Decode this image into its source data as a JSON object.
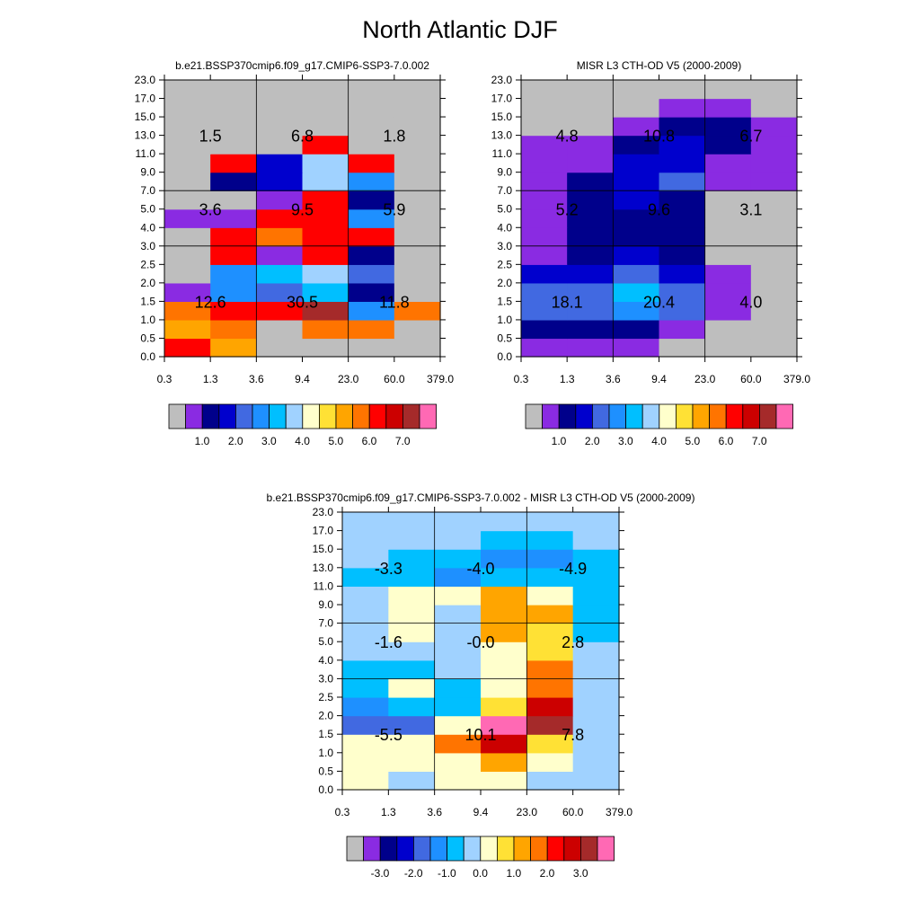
{
  "figure_title": "North Atlantic DJF",
  "chart_data": [
    {
      "type": "heatmap",
      "title": "b.e21.BSSP370cmip6.f09_g17.CMIP6-SSP3-7.0.002",
      "x_ticks": [
        "0.3",
        "1.3",
        "3.6",
        "9.4",
        "23.0",
        "60.0",
        "379.0"
      ],
      "y_ticks": [
        "0.0",
        "0.5",
        "1.0",
        "1.5",
        "2.0",
        "2.5",
        "3.0",
        "4.0",
        "5.0",
        "7.0",
        "9.0",
        "11.0",
        "13.0",
        "15.0",
        "17.0",
        "23.0"
      ],
      "cells": [
        [
          12,
          10,
          0,
          0,
          0,
          0
        ],
        [
          10,
          11,
          0,
          11,
          11,
          0
        ],
        [
          11,
          12,
          12,
          14,
          5,
          11
        ],
        [
          1,
          5,
          4,
          6,
          2,
          0
        ],
        [
          0,
          5,
          6,
          7,
          4,
          0
        ],
        [
          0,
          12,
          1,
          12,
          2,
          0
        ],
        [
          0,
          12,
          11,
          12,
          12,
          0
        ],
        [
          1,
          1,
          12,
          12,
          5,
          0
        ],
        [
          0,
          0,
          1,
          12,
          2,
          0
        ],
        [
          0,
          2,
          3,
          7,
          5,
          0
        ],
        [
          0,
          12,
          3,
          7,
          12,
          0
        ],
        [
          0,
          0,
          0,
          12,
          0,
          0
        ],
        [
          0,
          0,
          0,
          0,
          0,
          0
        ],
        [
          0,
          0,
          0,
          0,
          0,
          0
        ],
        [
          0,
          0,
          0,
          0,
          0,
          0
        ]
      ],
      "summary": [
        {
          "value": "1.5",
          "xi": 1,
          "yi": 12
        },
        {
          "value": "6.8",
          "xi": 3,
          "yi": 12
        },
        {
          "value": "1.8",
          "xi": 5,
          "yi": 12
        },
        {
          "value": "3.6",
          "xi": 1,
          "yi": 8
        },
        {
          "value": "9.5",
          "xi": 3,
          "yi": 8
        },
        {
          "value": "5.9",
          "xi": 5,
          "yi": 8
        },
        {
          "value": "12.6",
          "xi": 1,
          "yi": 3
        },
        {
          "value": "30.5",
          "xi": 3,
          "yi": 3
        },
        {
          "value": "11.8",
          "xi": 5,
          "yi": 3
        }
      ],
      "colorbar": {
        "colors": [
          "#bebebe",
          "#8a2be2",
          "#00008b",
          "#0000cd",
          "#4169e1",
          "#1e90ff",
          "#00bfff",
          "#a0d2ff",
          "#ffffcc",
          "#ffe135",
          "#ffa500",
          "#ff7400",
          "#ff0000",
          "#cc0000",
          "#a52a2a",
          "#ff69b4"
        ],
        "labels": [
          "1.0",
          "2.0",
          "3.0",
          "4.0",
          "5.0",
          "6.0",
          "7.0"
        ]
      }
    },
    {
      "type": "heatmap",
      "title": "MISR L3 CTH-OD V5 (2000-2009)",
      "x_ticks": [
        "0.3",
        "1.3",
        "3.6",
        "9.4",
        "23.0",
        "60.0",
        "379.0"
      ],
      "y_ticks": [
        "0.0",
        "0.5",
        "1.0",
        "1.5",
        "2.0",
        "2.5",
        "3.0",
        "4.0",
        "5.0",
        "7.0",
        "9.0",
        "11.0",
        "13.0",
        "15.0",
        "17.0",
        "23.0"
      ],
      "cells": [
        [
          1,
          1,
          1,
          0,
          0,
          0
        ],
        [
          2,
          2,
          2,
          1,
          0,
          0
        ],
        [
          4,
          4,
          5,
          4,
          1,
          0
        ],
        [
          4,
          4,
          6,
          4,
          1,
          0
        ],
        [
          3,
          3,
          4,
          3,
          1,
          0
        ],
        [
          1,
          2,
          3,
          2,
          0,
          0
        ],
        [
          1,
          2,
          2,
          2,
          0,
          0
        ],
        [
          1,
          2,
          2,
          2,
          0,
          0
        ],
        [
          1,
          2,
          3,
          2,
          0,
          0
        ],
        [
          1,
          2,
          3,
          4,
          1,
          1
        ],
        [
          1,
          1,
          3,
          3,
          1,
          1
        ],
        [
          1,
          1,
          2,
          3,
          2,
          1
        ],
        [
          0,
          0,
          1,
          2,
          2,
          1
        ],
        [
          0,
          0,
          0,
          1,
          1,
          0
        ],
        [
          0,
          0,
          0,
          0,
          0,
          0
        ]
      ],
      "summary": [
        {
          "value": "4.8",
          "xi": 1,
          "yi": 12
        },
        {
          "value": "10.8",
          "xi": 3,
          "yi": 12
        },
        {
          "value": "6.7",
          "xi": 5,
          "yi": 12
        },
        {
          "value": "5.2",
          "xi": 1,
          "yi": 8
        },
        {
          "value": "9.6",
          "xi": 3,
          "yi": 8
        },
        {
          "value": "3.1",
          "xi": 5,
          "yi": 8
        },
        {
          "value": "18.1",
          "xi": 1,
          "yi": 3
        },
        {
          "value": "20.4",
          "xi": 3,
          "yi": 3
        },
        {
          "value": "4.0",
          "xi": 5,
          "yi": 3
        }
      ],
      "colorbar": {
        "colors": [
          "#bebebe",
          "#8a2be2",
          "#00008b",
          "#0000cd",
          "#4169e1",
          "#1e90ff",
          "#00bfff",
          "#a0d2ff",
          "#ffffcc",
          "#ffe135",
          "#ffa500",
          "#ff7400",
          "#ff0000",
          "#cc0000",
          "#a52a2a",
          "#ff69b4"
        ],
        "labels": [
          "1.0",
          "2.0",
          "3.0",
          "4.0",
          "5.0",
          "6.0",
          "7.0"
        ]
      }
    },
    {
      "type": "heatmap",
      "title": "b.e21.BSSP370cmip6.f09_g17.CMIP6-SSP3-7.0.002 - MISR L3 CTH-OD V5 (2000-2009)",
      "x_ticks": [
        "0.3",
        "1.3",
        "3.6",
        "9.4",
        "23.0",
        "60.0",
        "379.0"
      ],
      "y_ticks": [
        "0.0",
        "0.5",
        "1.0",
        "1.5",
        "2.0",
        "2.5",
        "3.0",
        "4.0",
        "5.0",
        "7.0",
        "9.0",
        "11.0",
        "13.0",
        "15.0",
        "17.0",
        "23.0"
      ],
      "cells": [
        [
          8,
          7,
          8,
          8,
          7,
          7
        ],
        [
          8,
          8,
          8,
          10,
          8,
          7
        ],
        [
          8,
          8,
          11,
          13,
          9,
          7
        ],
        [
          4,
          4,
          8,
          15,
          14,
          7
        ],
        [
          5,
          6,
          6,
          9,
          13,
          7
        ],
        [
          6,
          8,
          6,
          8,
          11,
          7
        ],
        [
          6,
          6,
          7,
          8,
          11,
          7
        ],
        [
          7,
          7,
          7,
          8,
          9,
          7
        ],
        [
          7,
          8,
          7,
          10,
          9,
          6
        ],
        [
          7,
          8,
          7,
          10,
          10,
          6
        ],
        [
          7,
          8,
          8,
          10,
          8,
          6
        ],
        [
          6,
          6,
          5,
          6,
          6,
          6
        ],
        [
          7,
          6,
          6,
          5,
          5,
          6
        ],
        [
          7,
          7,
          7,
          6,
          6,
          7
        ],
        [
          7,
          7,
          7,
          7,
          7,
          7
        ]
      ],
      "summary": [
        {
          "value": "-3.3",
          "xi": 1,
          "yi": 12
        },
        {
          "value": "-4.0",
          "xi": 3,
          "yi": 12
        },
        {
          "value": "-4.9",
          "xi": 5,
          "yi": 12
        },
        {
          "value": "-1.6",
          "xi": 1,
          "yi": 8
        },
        {
          "value": "-0.0",
          "xi": 3,
          "yi": 8
        },
        {
          "value": "2.8",
          "xi": 5,
          "yi": 8
        },
        {
          "value": "-5.5",
          "xi": 1,
          "yi": 3
        },
        {
          "value": "10.1",
          "xi": 3,
          "yi": 3
        },
        {
          "value": "7.8",
          "xi": 5,
          "yi": 3
        }
      ],
      "colorbar": {
        "colors": [
          "#bebebe",
          "#8a2be2",
          "#00008b",
          "#0000cd",
          "#4169e1",
          "#1e90ff",
          "#00bfff",
          "#a0d2ff",
          "#ffffcc",
          "#ffe135",
          "#ffa500",
          "#ff7400",
          "#ff0000",
          "#cc0000",
          "#a52a2a",
          "#ff69b4"
        ],
        "labels": [
          "-3.0",
          "-2.0",
          "-1.0",
          "0.0",
          "1.0",
          "2.0",
          "3.0"
        ]
      }
    }
  ]
}
